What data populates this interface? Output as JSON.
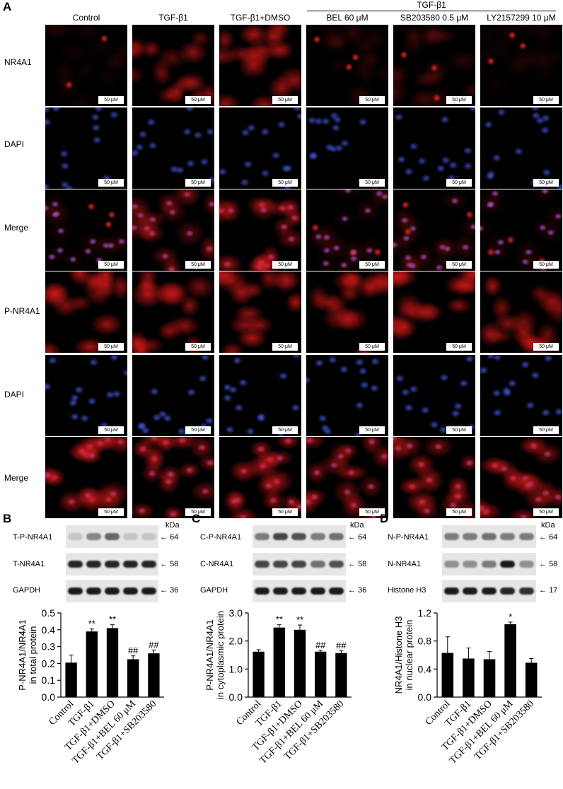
{
  "panelA": {
    "letter": "A",
    "group_label": "TGF-β1",
    "columns": [
      "Control",
      "TGF-β1",
      "TGF-β1+DMSO",
      "BEL 60 μM",
      "SB203580 0.5 μM",
      "LY2157299 10 μM"
    ],
    "rows": [
      "NR4A1",
      "DAPI",
      "Merge",
      "P-NR4A1",
      "DAPI",
      "Merge"
    ],
    "row_colors": [
      "red",
      "blue",
      "redblue",
      "red",
      "blue",
      "redblue"
    ],
    "row_intensity": [
      [
        0.12,
        0.65,
        0.8,
        0.15,
        0.3,
        0.1
      ],
      [
        0.5,
        0.5,
        0.5,
        0.5,
        0.5,
        0.5
      ],
      [
        0.15,
        0.6,
        0.75,
        0.2,
        0.3,
        0.15
      ],
      [
        0.85,
        0.85,
        0.8,
        0.75,
        0.8,
        0.8
      ],
      [
        0.6,
        0.6,
        0.6,
        0.6,
        0.6,
        0.6
      ],
      [
        0.85,
        0.85,
        0.8,
        0.7,
        0.8,
        0.8
      ]
    ],
    "scale_bar": "50 μM"
  },
  "blots": {
    "B": {
      "letter": "B",
      "kda": "kDa",
      "bands": [
        {
          "label": "T-P-NR4A1",
          "mw": "64",
          "strength": [
            0.15,
            0.45,
            0.6,
            0.15,
            0.15
          ]
        },
        {
          "label": "T-NR4A1",
          "mw": "58",
          "strength": [
            0.9,
            0.9,
            0.9,
            0.9,
            0.9
          ]
        },
        {
          "label": "GAPDH",
          "mw": "36",
          "strength": [
            0.95,
            0.95,
            0.95,
            0.95,
            0.95
          ]
        }
      ]
    },
    "C": {
      "letter": "C",
      "kda": "kDa",
      "bands": [
        {
          "label": "C-P-NR4A1",
          "mw": "64",
          "strength": [
            0.5,
            0.75,
            0.7,
            0.5,
            0.55
          ]
        },
        {
          "label": "C-NR4A1",
          "mw": "58",
          "strength": [
            0.75,
            0.75,
            0.75,
            0.55,
            0.7
          ]
        },
        {
          "label": "GAPDH",
          "mw": "36",
          "strength": [
            0.95,
            0.95,
            0.95,
            0.95,
            0.95
          ]
        }
      ]
    },
    "D": {
      "letter": "D",
      "kda": "kDa",
      "bands": [
        {
          "label": "N-P-NR4A1",
          "mw": "64",
          "strength": [
            0.5,
            0.5,
            0.55,
            0.5,
            0.5
          ]
        },
        {
          "label": "N-NR4A1",
          "mw": "58",
          "strength": [
            0.4,
            0.4,
            0.5,
            0.95,
            0.4
          ]
        },
        {
          "label": "Histone H3",
          "mw": "17",
          "strength": [
            0.95,
            0.95,
            0.95,
            0.9,
            0.85
          ]
        }
      ]
    }
  },
  "chart_data": [
    {
      "type": "bar",
      "panel": "B",
      "categories": [
        "Control",
        "TGF-β1",
        "TGF-β1+DMSO",
        "TGF-β1+BEL 60 μM",
        "TGF-β1+SB203580"
      ],
      "values": [
        0.205,
        0.39,
        0.41,
        0.225,
        0.26
      ],
      "errors": [
        0.045,
        0.015,
        0.02,
        0.02,
        0.02
      ],
      "annotations": [
        "",
        "**",
        "**",
        "##",
        "##"
      ],
      "ylabel": "P-NR4A1/NR4A1 in total protein",
      "ylim": [
        0.0,
        0.5
      ],
      "yticks": [
        "0.0",
        "0.1",
        "0.2",
        "0.3",
        "0.4",
        "0.5"
      ]
    },
    {
      "type": "bar",
      "panel": "C",
      "categories": [
        "Control",
        "TGF-β1",
        "TGF-β1+DMSO",
        "TGF-β1+BEL 60 μM",
        "TGF-β1+SB203580"
      ],
      "values": [
        1.62,
        2.48,
        2.4,
        1.62,
        1.57
      ],
      "errors": [
        0.07,
        0.1,
        0.17,
        0.05,
        0.08
      ],
      "annotations": [
        "",
        "**",
        "**",
        "##",
        "##"
      ],
      "ylabel": "P-NR4A1/NR4A1 in cytoplasmic protein",
      "ylim": [
        0.0,
        3.0
      ],
      "yticks": [
        "0.0",
        "1.0",
        "2.0",
        "3.0"
      ]
    },
    {
      "type": "bar",
      "panel": "D",
      "categories": [
        "Control",
        "TGF-β1",
        "TGF-β1+DMSO",
        "TGF-β1+BEL 60 μM",
        "TGF-β1+SB203580"
      ],
      "values": [
        0.63,
        0.55,
        0.54,
        1.04,
        0.49
      ],
      "errors": [
        0.23,
        0.15,
        0.11,
        0.03,
        0.06
      ],
      "annotations": [
        "",
        "",
        "",
        "*",
        ""
      ],
      "ylabel": "NR4A1/Histone H3 in nuclear protein",
      "ylim": [
        0.0,
        1.2
      ],
      "yticks": [
        "0.0",
        "0.4",
        "0.8",
        "1.2"
      ]
    }
  ]
}
